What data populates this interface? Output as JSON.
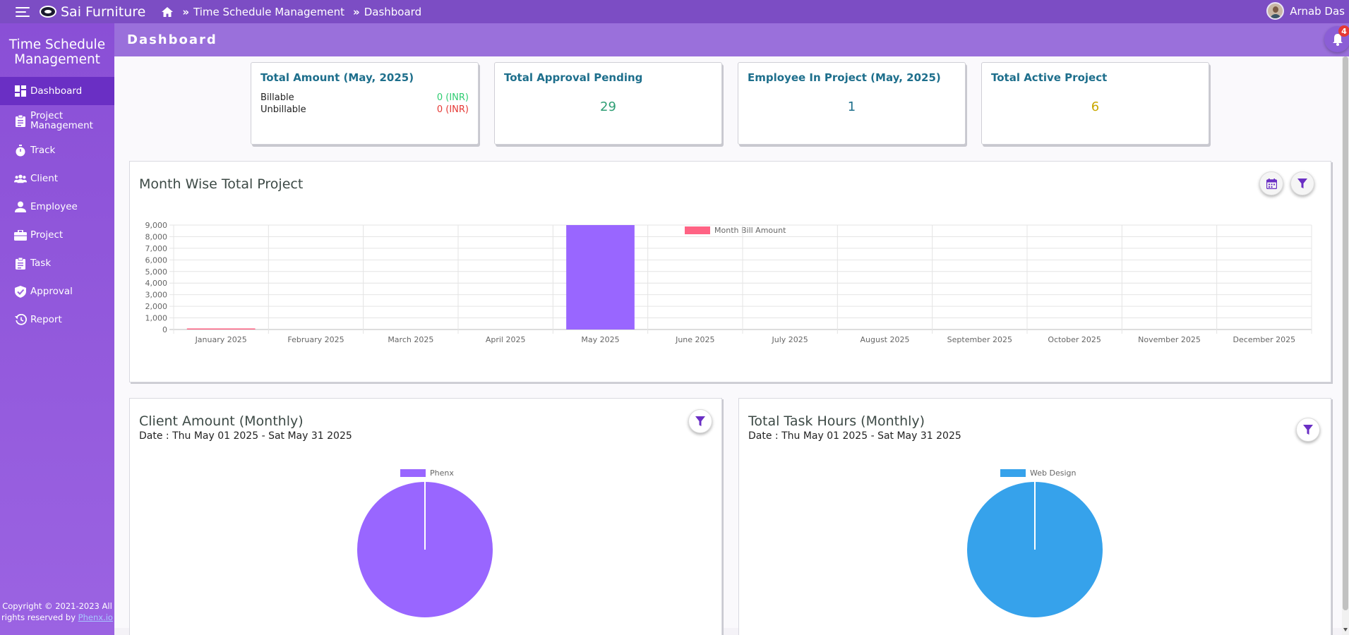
{
  "topbar": {
    "brand": "Sai Furniture",
    "breadcrumb": [
      "Time Schedule Management",
      "Dashboard"
    ],
    "user_name": "Arnab Das"
  },
  "sidebar": {
    "title": "Time Schedule Management",
    "items": [
      {
        "label": "Dashboard",
        "icon": "dashboard-icon",
        "active": true
      },
      {
        "label": "Project Management",
        "icon": "clipboard-icon"
      },
      {
        "label": "Track",
        "icon": "stopwatch-icon"
      },
      {
        "label": "Client",
        "icon": "users-icon"
      },
      {
        "label": "Employee",
        "icon": "person-icon"
      },
      {
        "label": "Project",
        "icon": "briefcase-icon"
      },
      {
        "label": "Task",
        "icon": "task-clipboard-icon"
      },
      {
        "label": "Approval",
        "icon": "shield-check-icon"
      },
      {
        "label": "Report",
        "icon": "history-icon"
      }
    ],
    "copyright_text": "Copyright © 2021-2023 All rights reserved by ",
    "copyright_link": "Phenx.io"
  },
  "header": {
    "title": "Dashboard",
    "notification_count": "4"
  },
  "stats": {
    "total_amount": {
      "title": "Total Amount (May, 2025)",
      "billable_label": "Billable",
      "billable_value": "0 (INR)",
      "unbillable_label": "Unbillable",
      "unbillable_value": "0 (INR)"
    },
    "approval_pending": {
      "title": "Total Approval Pending",
      "value": "29"
    },
    "employee_in_project": {
      "title": "Employee In Project (May, 2025)",
      "value": "1"
    },
    "active_project": {
      "title": "Total Active Project",
      "value": "6"
    }
  },
  "colors": {
    "purple": "#9966ff",
    "pink": "#ff6384",
    "blue": "#36a2eb",
    "green_value": "#2e9e74",
    "teal_value": "#1e6f8c",
    "gold_value": "#c9a800",
    "red_value": "#e53935"
  },
  "month_chart": {
    "title": "Month Wise Total Project",
    "chart_data": {
      "type": "bar",
      "categories": [
        "January 2025",
        "February 2025",
        "March 2025",
        "April 2025",
        "May 2025",
        "June 2025",
        "July 2025",
        "August 2025",
        "September 2025",
        "October 2025",
        "November 2025",
        "December 2025"
      ],
      "series": [
        {
          "name": "Month Bill Amount",
          "color": "#ff6384",
          "values": [
            0,
            0,
            0,
            0,
            0,
            0,
            0,
            0,
            0,
            0,
            0,
            0
          ]
        },
        {
          "color": "#9966ff",
          "values": [
            0,
            0,
            0,
            0,
            9000,
            0,
            0,
            0,
            0,
            0,
            0,
            0
          ]
        }
      ],
      "yticks": [
        "0",
        "1,000",
        "2,000",
        "3,000",
        "4,000",
        "5,000",
        "6,000",
        "7,000",
        "8,000",
        "9,000"
      ],
      "ylim": [
        0,
        9000
      ],
      "grid": true,
      "legend": "top-center"
    }
  },
  "client_chart": {
    "title": "Client Amount (Monthly)",
    "date_range": "Date : Thu May 01 2025 - Sat May 31 2025",
    "chart_data": {
      "type": "pie",
      "labels": [
        "Phenx"
      ],
      "values": [
        100
      ],
      "colors": [
        "#9966ff"
      ],
      "legend": "top-center"
    }
  },
  "task_chart": {
    "title": "Total Task Hours (Monthly)",
    "date_range": "Date : Thu May 01 2025 - Sat May 31 2025",
    "chart_data": {
      "type": "pie",
      "labels": [
        "Web Design"
      ],
      "values": [
        100
      ],
      "colors": [
        "#36a2eb"
      ],
      "legend": "top-center"
    }
  }
}
